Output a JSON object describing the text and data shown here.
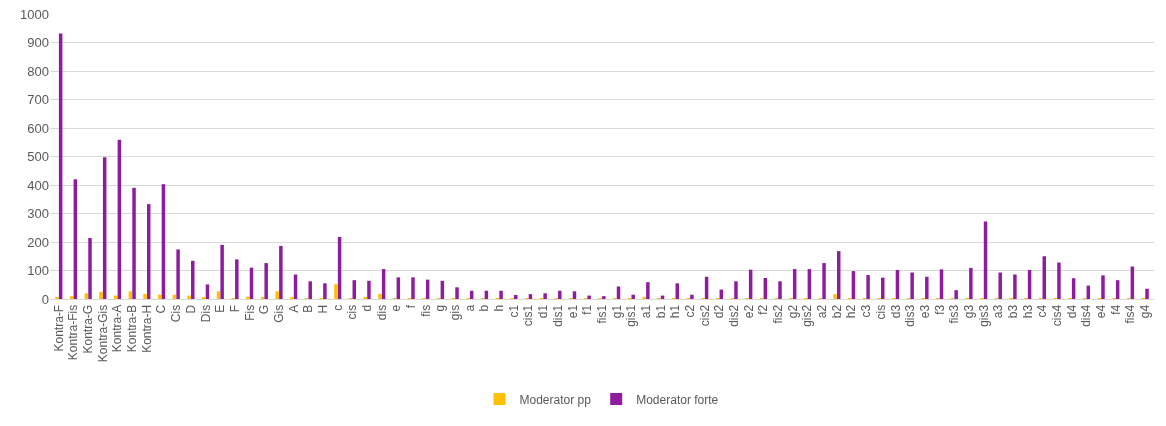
{
  "chart_data": {
    "type": "bar",
    "categories": [
      "Kontra-F",
      "Kontra-Fis",
      "Kontra-G",
      "Kontra-Gis",
      "Kontra-A",
      "Kontra-B",
      "Kontra-H",
      "C",
      "Cis",
      "D",
      "Dis",
      "E",
      "F",
      "Fis",
      "G",
      "Gis",
      "A",
      "B",
      "H",
      "c",
      "cis",
      "d",
      "dis",
      "e",
      "f",
      "fis",
      "g",
      "gis",
      "a",
      "b",
      "h",
      "c1",
      "cis1",
      "d1",
      "dis1",
      "e1",
      "f1",
      "fis1",
      "g1",
      "gis1",
      "a1",
      "b1",
      "h1",
      "c2",
      "cis2",
      "d2",
      "dis2",
      "e2",
      "f2",
      "fis2",
      "g2",
      "gis2",
      "a2",
      "b2",
      "h2",
      "c3",
      "cis",
      "d3",
      "dis3",
      "e3",
      "f3",
      "fis3",
      "g3",
      "gis3",
      "a3",
      "b3",
      "h3",
      "c4",
      "cis4",
      "d4",
      "dis4",
      "e4",
      "f4",
      "fis4",
      "g4"
    ],
    "series": [
      {
        "name": "Moderator pp",
        "color": "#ffc000",
        "values": [
          5,
          10,
          20,
          25,
          12,
          27,
          18,
          15,
          15,
          12,
          5,
          27,
          2,
          8,
          7,
          27,
          5,
          3,
          3,
          52,
          2,
          5,
          18,
          3,
          1,
          1,
          1,
          1,
          1,
          1,
          1,
          1,
          1,
          1,
          1,
          1,
          1,
          1,
          3,
          1,
          5,
          1,
          1,
          1,
          1,
          1,
          1,
          1,
          1,
          1,
          1,
          3,
          1,
          17,
          3,
          1,
          1,
          1,
          1,
          1,
          1,
          1,
          1,
          1,
          1,
          1,
          1,
          1,
          1,
          1,
          1,
          1,
          1,
          1,
          1
        ]
      },
      {
        "name": "Moderator forte",
        "color": "#8e1c9e",
        "values": [
          932,
          420,
          214,
          497,
          559,
          390,
          333,
          403,
          174,
          134,
          51,
          190,
          139,
          110,
          126,
          186,
          86,
          62,
          55,
          218,
          66,
          64,
          105,
          76,
          76,
          68,
          64,
          41,
          29,
          29,
          29,
          14,
          17,
          20,
          29,
          27,
          12,
          10,
          44,
          15,
          59,
          12,
          55,
          15,
          78,
          33,
          62,
          103,
          74,
          62,
          105,
          105,
          126,
          168,
          98,
          84,
          75,
          102,
          93,
          78,
          104,
          31,
          109,
          272,
          93,
          86,
          102,
          150,
          128,
          73,
          47,
          83,
          66,
          114,
          36
        ]
      }
    ],
    "ylim": [
      0,
      1000
    ],
    "yticks": [
      0,
      100,
      200,
      300,
      400,
      500,
      600,
      700,
      800,
      900,
      1000
    ],
    "grid": "y",
    "legend": "bottom"
  }
}
